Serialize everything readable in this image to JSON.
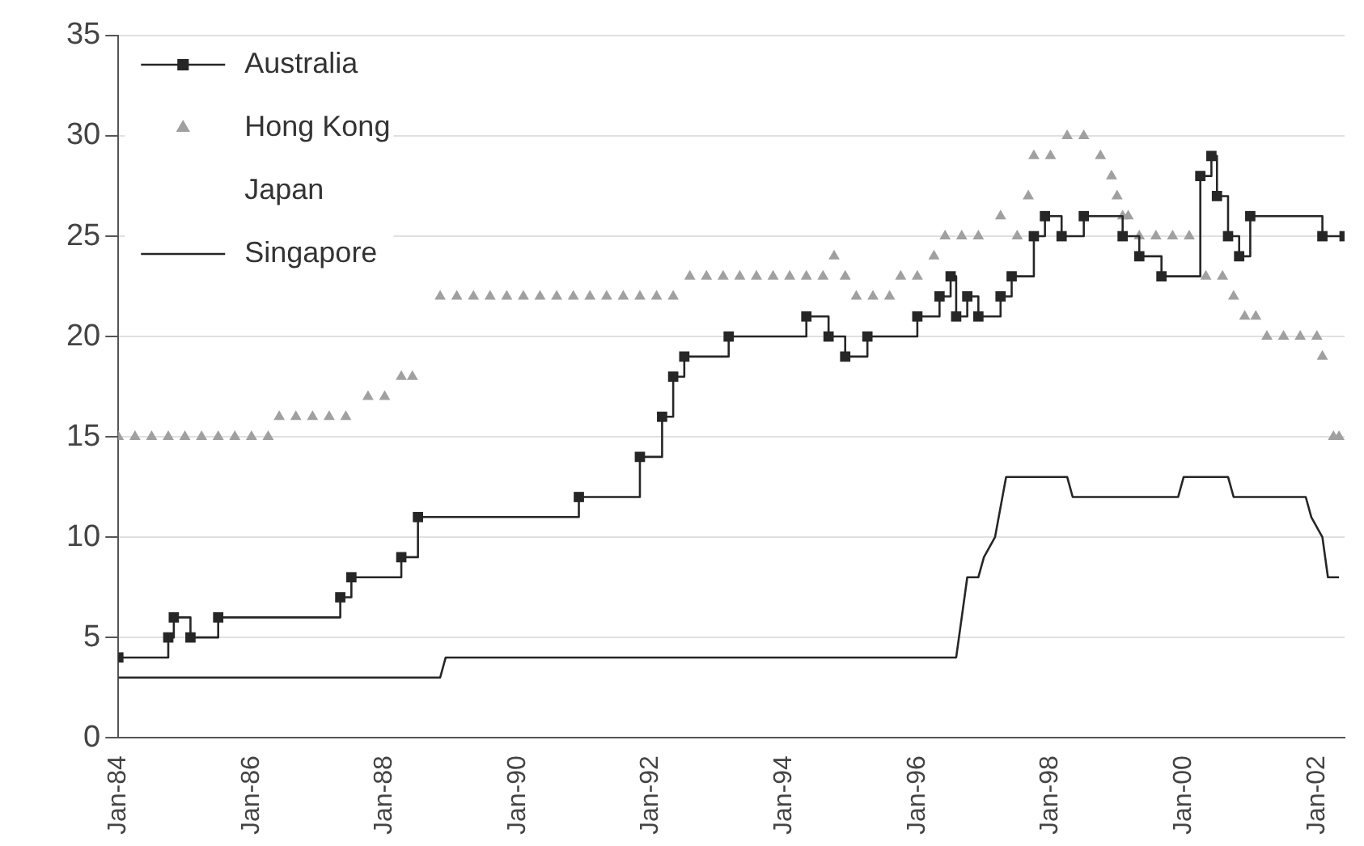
{
  "chart_data": {
    "type": "line",
    "xlim": [
      "1984-01",
      "2002-06"
    ],
    "xticks": [
      {
        "value": "1984-01",
        "label": "Jan-84"
      },
      {
        "value": "1986-01",
        "label": "Jan-86"
      },
      {
        "value": "1988-01",
        "label": "Jan-88"
      },
      {
        "value": "1990-01",
        "label": "Jan-90"
      },
      {
        "value": "1992-01",
        "label": "Jan-92"
      },
      {
        "value": "1994-01",
        "label": "Jan-94"
      },
      {
        "value": "1996-01",
        "label": "Jan-96"
      },
      {
        "value": "1998-01",
        "label": "Jan-98"
      },
      {
        "value": "2000-01",
        "label": "Jan-00"
      },
      {
        "value": "2002-01",
        "label": "Jan-02"
      }
    ],
    "ylim": [
      0,
      35
    ],
    "yticks": [
      0,
      5,
      10,
      15,
      20,
      25,
      30,
      35
    ],
    "grid": "y",
    "legend": "top left",
    "series": [
      {
        "name": "Australia",
        "type": "step",
        "marker": "square",
        "color": "#262626",
        "x": [
          "1984-01",
          "1984-10",
          "1984-11",
          "1985-02",
          "1985-07",
          "1987-05",
          "1987-07",
          "1988-04",
          "1988-07",
          "1990-12",
          "1991-11",
          "1992-03",
          "1992-05",
          "1992-07",
          "1993-03",
          "1994-05",
          "1994-09",
          "1994-12",
          "1995-04",
          "1996-01",
          "1996-05",
          "1996-07",
          "1996-08",
          "1996-10",
          "1996-12",
          "1997-04",
          "1997-06",
          "1997-10",
          "1997-12",
          "1998-03",
          "1998-07",
          "1999-02",
          "1999-05",
          "1999-09",
          "2000-04",
          "2000-06",
          "2000-07",
          "2000-09",
          "2000-11",
          "2001-01",
          "2002-02",
          "2002-06"
        ],
        "values": [
          4,
          5,
          6,
          5,
          6,
          7,
          8,
          9,
          11,
          12,
          14,
          16,
          18,
          19,
          20,
          21,
          20,
          19,
          20,
          21,
          22,
          23,
          21,
          22,
          21,
          22,
          23,
          25,
          26,
          25,
          26,
          25,
          24,
          23,
          28,
          29,
          27,
          25,
          24,
          26,
          25,
          25
        ]
      },
      {
        "name": "Hong Kong",
        "type": "scatter",
        "marker": "triangle",
        "color": "#a0a0a0",
        "x": [
          "1984-01",
          "1984-04",
          "1984-07",
          "1984-10",
          "1985-01",
          "1985-04",
          "1985-07",
          "1985-10",
          "1986-01",
          "1986-04",
          "1986-06",
          "1986-09",
          "1986-12",
          "1987-03",
          "1987-06",
          "1987-10",
          "1988-01",
          "1988-04",
          "1988-06",
          "1988-11",
          "1989-02",
          "1989-05",
          "1989-08",
          "1989-11",
          "1990-02",
          "1990-05",
          "1990-08",
          "1990-11",
          "1991-02",
          "1991-05",
          "1991-08",
          "1991-11",
          "1992-02",
          "1992-05",
          "1992-08",
          "1992-11",
          "1993-02",
          "1993-05",
          "1993-08",
          "1993-11",
          "1994-02",
          "1994-05",
          "1994-08",
          "1994-10",
          "1994-12",
          "1995-02",
          "1995-05",
          "1995-08",
          "1995-10",
          "1996-01",
          "1996-04",
          "1996-06",
          "1996-09",
          "1996-12",
          "1997-04",
          "1997-07",
          "1997-09",
          "1997-10",
          "1998-01",
          "1998-04",
          "1998-07",
          "1998-10",
          "1998-12",
          "1999-01",
          "1999-02",
          "1999-03",
          "1999-05",
          "1999-08",
          "1999-11",
          "2000-02",
          "2000-05",
          "2000-08",
          "2000-10",
          "2000-12",
          "2001-02",
          "2001-04",
          "2001-07",
          "2001-10",
          "2002-01",
          "2002-02",
          "2002-04",
          "2002-05"
        ],
        "values": [
          15,
          15,
          15,
          15,
          15,
          15,
          15,
          15,
          15,
          15,
          16,
          16,
          16,
          16,
          16,
          17,
          17,
          18,
          18,
          22,
          22,
          22,
          22,
          22,
          22,
          22,
          22,
          22,
          22,
          22,
          22,
          22,
          22,
          22,
          23,
          23,
          23,
          23,
          23,
          23,
          23,
          23,
          23,
          24,
          23,
          22,
          22,
          22,
          23,
          23,
          24,
          25,
          25,
          25,
          26,
          25,
          27,
          29,
          29,
          30,
          30,
          29,
          28,
          27,
          26,
          26,
          25,
          25,
          25,
          25,
          23,
          23,
          22,
          21,
          21,
          20,
          20,
          20,
          20,
          19,
          15,
          15
        ]
      },
      {
        "name": "Japan",
        "marker": "none"
      },
      {
        "name": "Singapore",
        "marker": "none",
        "color": "#262626",
        "x": [
          "1984-01",
          "1988-11",
          "1988-12",
          "1996-08",
          "1996-09",
          "1996-10",
          "1996-12",
          "1997-01",
          "1997-03",
          "1997-05",
          "1998-04",
          "1998-05",
          "1999-12",
          "2000-01",
          "2000-09",
          "2000-10",
          "2001-11",
          "2001-12",
          "2002-02",
          "2002-03",
          "2002-05"
        ],
        "values": [
          3,
          3,
          4,
          4,
          6,
          8,
          8,
          9,
          10,
          13,
          13,
          12,
          12,
          13,
          13,
          12,
          12,
          11,
          10,
          8,
          8
        ]
      }
    ]
  }
}
